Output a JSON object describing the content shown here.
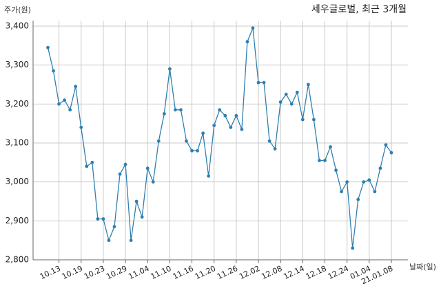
{
  "chart_data": {
    "type": "line",
    "title": "세우글로벌, 최근 3개월",
    "ylabel": "주가(원)",
    "xlabel": "날짜(일)",
    "ylim": [
      2800,
      3400
    ],
    "yticks": [
      "2,800",
      "2,900",
      "3,000",
      "3,100",
      "3,200",
      "3,300",
      "3,400"
    ],
    "ytick_values": [
      2800,
      2900,
      3000,
      3100,
      3200,
      3300,
      3400
    ],
    "xtick_labels": [
      "10.13",
      "10.19",
      "10.23",
      "10.29",
      "11.04",
      "11.10",
      "11.16",
      "11.20",
      "11.26",
      "12.02",
      "12.08",
      "12.14",
      "12.18",
      "12.24",
      "01.04",
      "21.01.08"
    ],
    "xtick_index": [
      2,
      6,
      10,
      14,
      18,
      22,
      26,
      30,
      34,
      38,
      42,
      46,
      50,
      54,
      58,
      62
    ],
    "grid": true,
    "color": "#2e7fb0",
    "series": [
      {
        "values": [
          3345,
          3285,
          3200,
          3210,
          3185,
          3245,
          3140,
          3040,
          3050,
          2905,
          2905,
          2850,
          2885,
          3020,
          3045,
          2850,
          2950,
          2910,
          3035,
          3000,
          3105,
          3175,
          3290,
          3185,
          3185,
          3105,
          3080,
          3080,
          3125,
          3015,
          3145,
          3185,
          3170,
          3140,
          3170,
          3135,
          3360,
          3395,
          3255,
          3255,
          3105,
          3085,
          3205,
          3225,
          3200,
          3230,
          3160,
          3250,
          3160,
          3055,
          3055,
          3090,
          3030,
          2975,
          3000,
          2830,
          2955,
          3000,
          3005,
          2975,
          3035,
          3095,
          3075
        ]
      }
    ]
  }
}
